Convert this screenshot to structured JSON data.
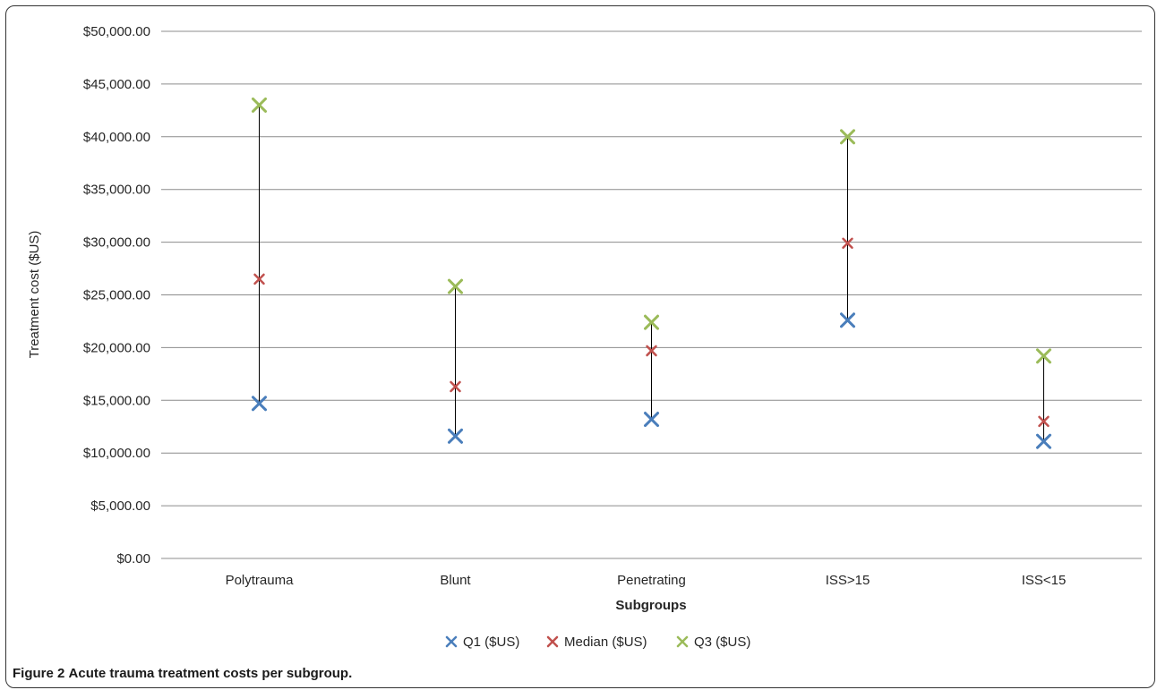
{
  "chart_data": {
    "type": "scatter",
    "title": "",
    "xlabel": "Subgroups",
    "ylabel": "Treatment cost ($US)",
    "ylim": [
      0,
      50000
    ],
    "ytick_step": 5000,
    "categories": [
      "Polytrauma",
      "Blunt",
      "Penetrating",
      "ISS>15",
      "ISS<15"
    ],
    "series": [
      {
        "name": "Q1 ($US)",
        "color": "#4a7ebb",
        "values": [
          14700,
          11600,
          13200,
          22600,
          11100
        ]
      },
      {
        "name": "Median ($US)",
        "color": "#c0504d",
        "values": [
          26500,
          16300,
          19700,
          29900,
          13000
        ]
      },
      {
        "name": "Q3 ($US)",
        "color": "#9bbb59",
        "values": [
          43000,
          25800,
          22400,
          40000,
          19200
        ]
      }
    ],
    "grid": true,
    "legend_position": "bottom",
    "marker": "x",
    "range_line": true
  },
  "caption": {
    "label": "Figure 2",
    "text": "Acute trauma treatment costs per subgroup."
  }
}
